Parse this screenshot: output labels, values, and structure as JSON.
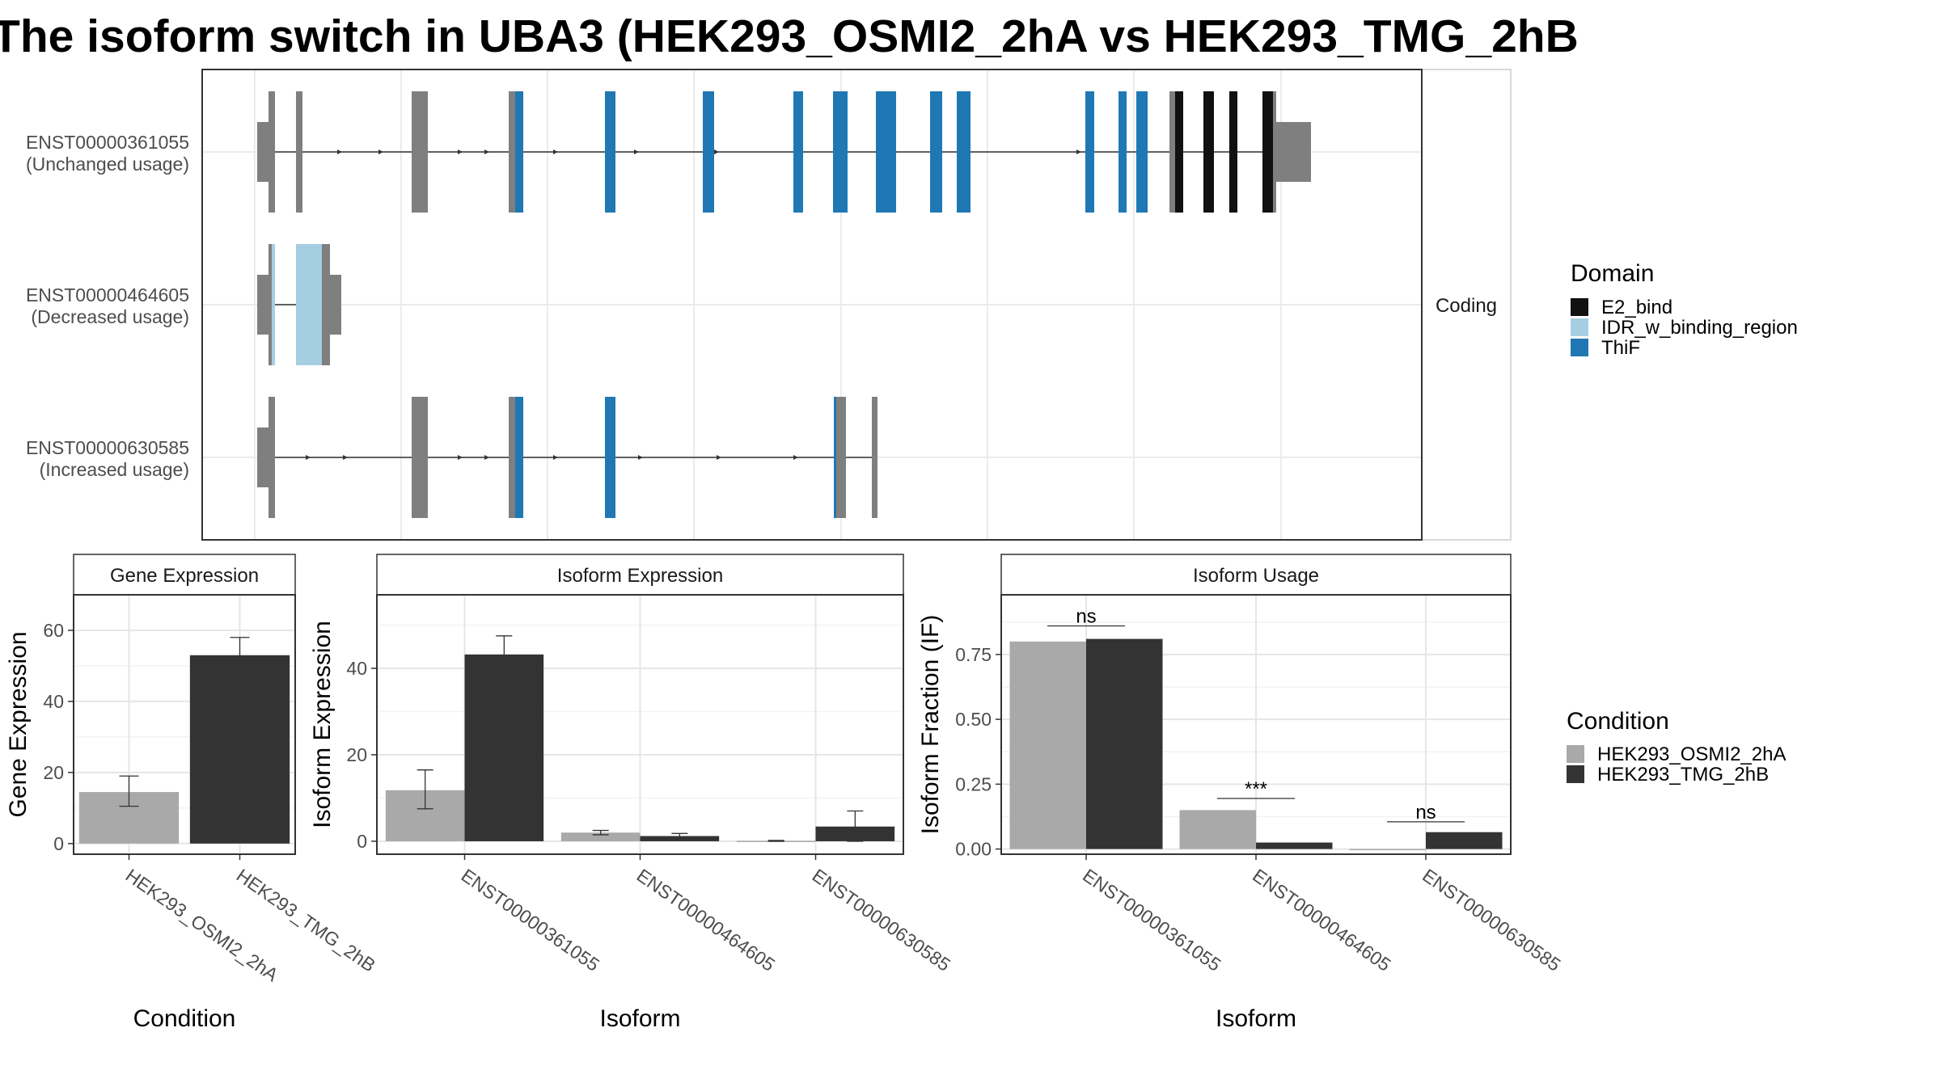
{
  "title": "The isoform switch in UBA3 (HEK293_OSMI2_2hA vs HEK293_TMG_2hB",
  "chart_data": [
    {
      "type": "gene-structure",
      "facet_strip": "Coding",
      "transcripts": [
        {
          "id": "ENST00000361055",
          "usage": "(Unchanged usage)",
          "segments": [
            {
              "start": 0,
              "end": 14,
              "kind": "utr"
            },
            {
              "start": 14,
              "end": 22,
              "kind": "cds",
              "domain": "none"
            },
            {
              "start": 48,
              "end": 56,
              "kind": "cds",
              "domain": "none"
            },
            {
              "start": 191,
              "end": 211,
              "kind": "cds",
              "domain": "none"
            },
            {
              "start": 311,
              "end": 319,
              "kind": "cds",
              "domain": "none"
            },
            {
              "start": 319,
              "end": 329,
              "kind": "cds",
              "domain": "ThiF"
            },
            {
              "start": 430,
              "end": 443,
              "kind": "cds",
              "domain": "ThiF"
            },
            {
              "start": 551,
              "end": 565,
              "kind": "cds",
              "domain": "ThiF"
            },
            {
              "start": 663,
              "end": 675,
              "kind": "cds",
              "domain": "ThiF"
            },
            {
              "start": 712,
              "end": 730,
              "kind": "cds",
              "domain": "ThiF"
            },
            {
              "start": 765,
              "end": 790,
              "kind": "cds",
              "domain": "ThiF"
            },
            {
              "start": 832,
              "end": 847,
              "kind": "cds",
              "domain": "ThiF"
            },
            {
              "start": 865,
              "end": 882,
              "kind": "cds",
              "domain": "ThiF"
            },
            {
              "start": 1024,
              "end": 1035,
              "kind": "cds",
              "domain": "ThiF"
            },
            {
              "start": 1065,
              "end": 1075,
              "kind": "cds",
              "domain": "ThiF"
            },
            {
              "start": 1087,
              "end": 1101,
              "kind": "cds",
              "domain": "ThiF"
            },
            {
              "start": 1128,
              "end": 1135,
              "kind": "cds",
              "domain": "none"
            },
            {
              "start": 1135,
              "end": 1145,
              "kind": "cds",
              "domain": "E2_bind"
            },
            {
              "start": 1170,
              "end": 1183,
              "kind": "cds",
              "domain": "E2_bind"
            },
            {
              "start": 1202,
              "end": 1212,
              "kind": "cds",
              "domain": "E2_bind"
            },
            {
              "start": 1243,
              "end": 1256,
              "kind": "cds",
              "domain": "E2_bind"
            },
            {
              "start": 1256,
              "end": 1260,
              "kind": "cds",
              "domain": "none"
            },
            {
              "start": 1260,
              "end": 1303,
              "kind": "utr"
            }
          ],
          "arrows": [
            103,
            154,
            252,
            285,
            370,
            470,
            569,
            1017
          ]
        },
        {
          "id": "ENST00000464605",
          "usage": "(Decreased usage)",
          "segments": [
            {
              "start": 0,
              "end": 14,
              "kind": "utr"
            },
            {
              "start": 14,
              "end": 18,
              "kind": "cds",
              "domain": "none"
            },
            {
              "start": 18,
              "end": 22,
              "kind": "cds",
              "domain": "IDR_w_binding_region"
            },
            {
              "start": 48,
              "end": 80,
              "kind": "cds",
              "domain": "IDR_w_binding_region"
            },
            {
              "start": 80,
              "end": 90,
              "kind": "cds",
              "domain": "none"
            },
            {
              "start": 90,
              "end": 104,
              "kind": "utr"
            }
          ],
          "arrows": []
        },
        {
          "id": "ENST00000630585",
          "usage": "(Increased usage)",
          "segments": [
            {
              "start": 0,
              "end": 14,
              "kind": "utr"
            },
            {
              "start": 14,
              "end": 22,
              "kind": "cds",
              "domain": "none"
            },
            {
              "start": 191,
              "end": 211,
              "kind": "cds",
              "domain": "none"
            },
            {
              "start": 311,
              "end": 319,
              "kind": "cds",
              "domain": "none"
            },
            {
              "start": 319,
              "end": 329,
              "kind": "cds",
              "domain": "ThiF"
            },
            {
              "start": 430,
              "end": 443,
              "kind": "cds",
              "domain": "ThiF"
            },
            {
              "start": 713,
              "end": 716,
              "kind": "cds",
              "domain": "ThiF"
            },
            {
              "start": 716,
              "end": 728,
              "kind": "cds",
              "domain": "none"
            },
            {
              "start": 760,
              "end": 767,
              "kind": "cds",
              "domain": "none"
            }
          ],
          "arrows": [
            64,
            110,
            252,
            285,
            370,
            475,
            572,
            667
          ]
        }
      ],
      "legend": {
        "title": "Domain",
        "entries": [
          {
            "label": "E2_bind",
            "color": "#111111"
          },
          {
            "label": "IDR_w_binding_region",
            "color": "#a6cee3"
          },
          {
            "label": "ThiF",
            "color": "#1f78b4"
          }
        ]
      }
    },
    {
      "type": "bar",
      "panel_title": "Gene Expression",
      "xlabel": "Condition",
      "ylabel": "Gene Expression",
      "ylim": [
        -3,
        70
      ],
      "yticks": [
        0,
        20,
        40,
        60
      ],
      "categories": [
        "HEK293_OSMI2_2hA",
        "HEK293_TMG_2hB"
      ],
      "values": [
        14.5,
        53
      ],
      "error": [
        [
          10.5,
          19
        ],
        [
          48.5,
          58
        ]
      ],
      "colors": [
        "#a9a9a9",
        "#333333"
      ]
    },
    {
      "type": "bar",
      "panel_title": "Isoform Expression",
      "xlabel": "Isoform",
      "ylabel": "Isoform Expression",
      "ylim": [
        -3,
        57
      ],
      "yticks": [
        0,
        20,
        40
      ],
      "categories": [
        "ENST00000361055",
        "ENST00000464605",
        "ENST00000630585"
      ],
      "series": [
        {
          "name": "HEK293_OSMI2_2hA",
          "values": [
            11.8,
            2.0,
            0.1
          ],
          "error": [
            [
              7.5,
              16.5
            ],
            [
              1.5,
              2.5
            ],
            [
              0,
              0.2
            ]
          ]
        },
        {
          "name": "HEK293_TMG_2hB",
          "values": [
            43.2,
            1.2,
            3.4
          ],
          "error": [
            [
              39,
              47.5
            ],
            [
              0.8,
              1.8
            ],
            [
              0,
              7
            ]
          ]
        }
      ]
    },
    {
      "type": "bar",
      "panel_title": "Isoform Usage",
      "xlabel": "Isoform",
      "ylabel": "Isoform Fraction (IF)",
      "ylim": [
        -0.02,
        0.98
      ],
      "yticks": [
        "0.00",
        "0.25",
        "0.50",
        "0.75"
      ],
      "categories": [
        "ENST00000361055",
        "ENST00000464605",
        "ENST00000630585"
      ],
      "series": [
        {
          "name": "HEK293_OSMI2_2hA",
          "values": [
            0.8,
            0.15,
            0.0
          ]
        },
        {
          "name": "HEK293_TMG_2hB",
          "values": [
            0.81,
            0.025,
            0.065
          ]
        }
      ],
      "significance": [
        "ns",
        "***",
        "ns"
      ],
      "sig_heights": [
        0.86,
        0.195,
        0.105
      ]
    }
  ],
  "condition_legend": {
    "title": "Condition",
    "entries": [
      {
        "label": "HEK293_OSMI2_2hA",
        "color": "#a9a9a9"
      },
      {
        "label": "HEK293_TMG_2hB",
        "color": "#333333"
      }
    ]
  }
}
